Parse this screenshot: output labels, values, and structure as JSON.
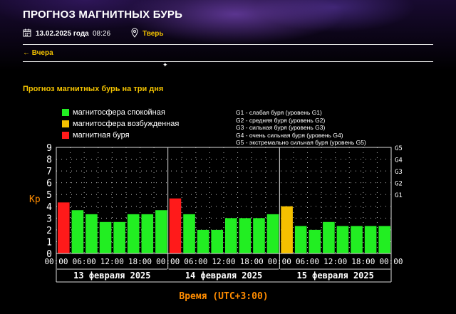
{
  "header": {
    "title": "ПРОГНОЗ МАГНИТНЫХ БУРЬ",
    "date": "13.02.2025 года",
    "time": "08:26",
    "city": "Тверь",
    "calendar_icon": "calendar-icon",
    "location_icon": "location-pin-icon"
  },
  "nav": {
    "back_label": "← Вчера"
  },
  "section_title": "Прогноз магнитных бурь на три дня",
  "legend": {
    "items": [
      {
        "label": "магнитосфера спокойная",
        "color": "#22ee22"
      },
      {
        "label": "магнитосфера возбужденная",
        "color": "#f5c000"
      },
      {
        "label": "магнитная буря",
        "color": "#ff1a1a"
      }
    ],
    "g_levels": [
      "G1 - слабая буря (уровень G1)",
      "G2 - средняя буря (уровень G2)",
      "G3 - сильная буря (уровень G3)",
      "G4 - очень сильная буря (уровень G4)",
      "G5 - экстремально сильная буря (уровень G5)"
    ]
  },
  "chart_data": {
    "type": "bar",
    "ylabel": "Kp",
    "xlabel": "Время (UTC+3:00)",
    "ylim": [
      0,
      9
    ],
    "yticks": [
      0,
      1,
      2,
      3,
      4,
      5,
      6,
      7,
      8,
      9
    ],
    "right_axis": [
      {
        "label": "G1",
        "kp": 5
      },
      {
        "label": "G2",
        "kp": 6
      },
      {
        "label": "G3",
        "kp": 7
      },
      {
        "label": "G4",
        "kp": 8
      },
      {
        "label": "G5",
        "kp": 9
      }
    ],
    "grid": true,
    "days": [
      {
        "label": "13 февраля 2025",
        "ticks": [
          "00:00",
          "06:00",
          "12:00",
          "18:00",
          "00:00"
        ],
        "values": [
          4.33,
          3.67,
          3.33,
          2.67,
          2.67,
          3.33,
          3.33,
          3.67
        ]
      },
      {
        "label": "14 февраля 2025",
        "ticks": [
          "06:00",
          "12:00",
          "18:00",
          "00:00"
        ],
        "values": [
          4.67,
          3.33,
          2.0,
          2.0,
          3.0,
          3.0,
          3.0,
          3.33
        ]
      },
      {
        "label": "15 февраля 2025",
        "ticks": [
          "06:00",
          "12:00",
          "18:00",
          "00:00"
        ],
        "values": [
          4.0,
          2.33,
          2.0,
          2.67,
          2.33,
          2.33,
          2.33,
          2.33
        ]
      }
    ],
    "colors": {
      "quiet": "#22ee22",
      "active": "#f5c000",
      "storm": "#ff1a1a"
    }
  }
}
